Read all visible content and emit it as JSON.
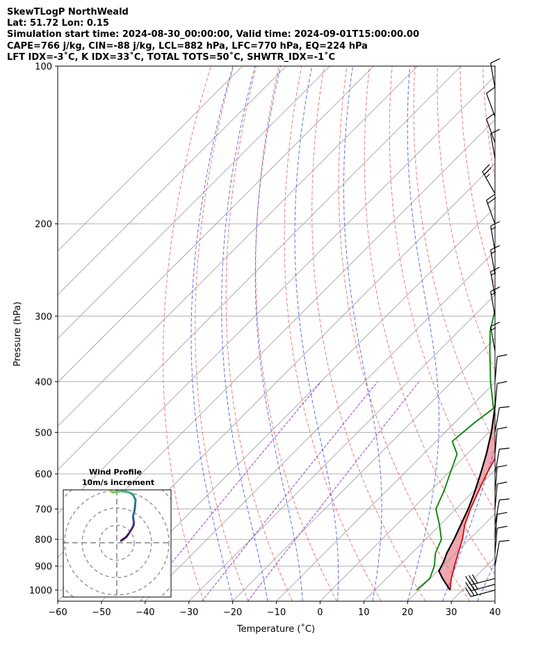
{
  "header": {
    "line1": "SkewTLogP NorthWeald",
    "line2": "Lat: 51.72   Lon: 0.15",
    "line3": "Simulation start time: 2024-08-30_00:00:00, Valid time: 2024-09-01T15:00:00.00",
    "line4": "CAPE=766 j/kg, CIN=-88 j/kg, LCL=882 hPa, LFC=770 hPa, EQ=224 hPa",
    "line5": "LFT IDX=-3˚C, K IDX=33˚C, TOTAL TOTS=50˚C, SHWTR_IDX=-1˚C"
  },
  "chart_data": {
    "type": "line",
    "subtype": "skew-t log-p",
    "xlabel": "Temperature (˚C)",
    "ylabel": "Pressure (hPa)",
    "xlim": [
      -60,
      40
    ],
    "ylim": [
      1050,
      100
    ],
    "yscale": "log",
    "grid": true,
    "x_ticks": [
      "−60",
      "−50",
      "−40",
      "−30",
      "−20",
      "−10",
      "0",
      "10",
      "20",
      "30",
      "40"
    ],
    "y_ticks": [
      "100",
      "200",
      "300",
      "400",
      "500",
      "600",
      "700",
      "800",
      "900",
      "1000"
    ],
    "y_tick_values": [
      100,
      200,
      300,
      400,
      500,
      600,
      700,
      800,
      900,
      1000
    ],
    "colors": {
      "temperature": "#e00000",
      "dewpoint": "#008000",
      "parcel": "#000000",
      "cape": "#a3c6e0",
      "cin": "#f0a6ae",
      "dry_adiabat": "#f06a6a",
      "moist_adiabat": "#5a6ef0",
      "mixing_ratio": "#9b3ec8",
      "isotherm": "#9a9a9a"
    },
    "temperature": {
      "pressure": [
        1000,
        950,
        900,
        850,
        800,
        750,
        700,
        650,
        600,
        550,
        500,
        450,
        400,
        350,
        300,
        250,
        228,
        224,
        210,
        200,
        185,
        175,
        160,
        145,
        130,
        120,
        110,
        100
      ],
      "value": [
        27.2,
        24.8,
        22.7,
        20.6,
        18.4,
        15.6,
        13.3,
        11.2,
        9.0,
        6.9,
        5.0,
        3.1,
        -0.4,
        -5.2,
        -11.4,
        -18.6,
        -21.5,
        -21.6,
        -22.5,
        -23.2,
        -25.0,
        -25.6,
        -28.3,
        -32.0,
        -37.1,
        -40.1,
        -43.1,
        -47.0
      ]
    },
    "dewpoint": {
      "pressure": [
        1000,
        950,
        900,
        850,
        800,
        750,
        700,
        650,
        600,
        550,
        520,
        480,
        450,
        400,
        350,
        320,
        290,
        250,
        220,
        200,
        180,
        165,
        155,
        140,
        120,
        100
      ],
      "value": [
        19.5,
        19.9,
        18.1,
        15.4,
        13.6,
        9.8,
        5.4,
        3.3,
        0.6,
        -2.3,
        -6.3,
        -5.5,
        -4.4,
        -11.2,
        -18.3,
        -22.9,
        -26.8,
        -34.2,
        -40.4,
        -44.5,
        -47.2,
        -49.1,
        -51.1,
        -52.5,
        -56.2,
        -60.3
      ]
    },
    "parcel": {
      "pressure": [
        1000,
        950,
        920,
        882,
        850,
        800,
        750,
        700,
        650,
        600,
        550,
        500,
        450,
        400,
        350,
        300,
        250,
        224,
        200,
        150,
        100
      ],
      "value": [
        27.2,
        22.8,
        20.3,
        19.2,
        18.0,
        16.5,
        14.7,
        12.8,
        10.4,
        7.6,
        4.4,
        0.6,
        -4.1,
        -9.5,
        -15.9,
        -23.5,
        -33.0,
        -38.3,
        -43.8,
        -58.5,
        -78.0
      ]
    },
    "wind_barbs": {
      "pressure": [
        1000,
        975,
        950,
        900,
        850,
        800,
        750,
        700,
        650,
        600,
        550,
        500,
        450,
        400,
        350,
        300,
        275,
        250,
        225,
        200,
        175,
        150,
        140,
        125,
        110
      ],
      "speed_kt": [
        30,
        30,
        30,
        10,
        10,
        10,
        10,
        10,
        10,
        10,
        10,
        10,
        10,
        10,
        15,
        15,
        15,
        15,
        15,
        20,
        25,
        10,
        10,
        10,
        10
      ],
      "direction_deg": [
        255,
        255,
        255,
        10,
        5,
        5,
        10,
        5,
        5,
        10,
        5,
        10,
        5,
        5,
        350,
        350,
        350,
        350,
        350,
        340,
        330,
        350,
        340,
        340,
        350
      ]
    },
    "hodograph": {
      "title": "Wind Profile",
      "subtitle": "10m/s increment",
      "u": [
        2.5,
        4.0,
        5.5,
        7.0,
        8.5,
        9.6,
        9.8,
        9.6,
        9.3,
        10.0,
        10.4,
        10.6,
        10.8,
        10.0,
        9.5,
        8.8,
        7.4,
        5.2,
        2.4,
        -0.4,
        -2.4,
        -3.6,
        -3.4,
        -2.0,
        -0.6
      ],
      "v": [
        1.2,
        2.2,
        3.4,
        5.4,
        7.8,
        9.8,
        11.6,
        13.4,
        15.0,
        17.6,
        20.0,
        22.6,
        24.6,
        26.2,
        27.4,
        28.0,
        28.8,
        29.4,
        29.6,
        29.2,
        29.0,
        29.6,
        31.0,
        31.6,
        31.2
      ]
    }
  }
}
